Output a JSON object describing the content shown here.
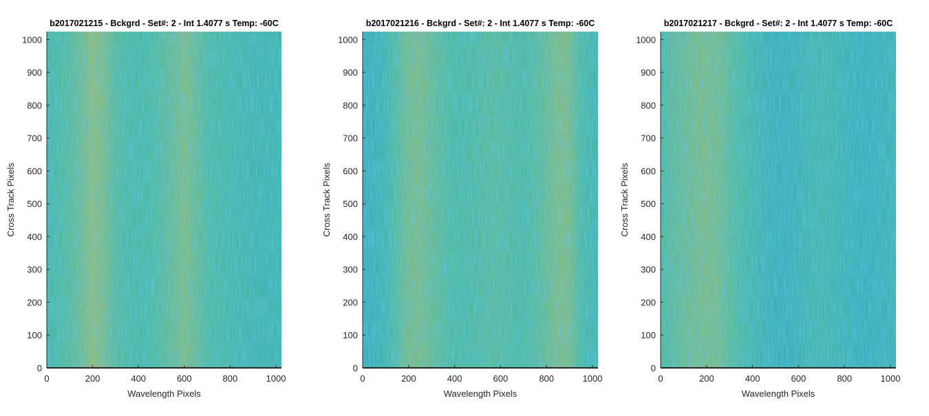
{
  "chart_data": [
    {
      "type": "heatmap",
      "title": "b2017021215 - Bckgrd - Set#: 2 - Int 1.4077 s Temp: -60C",
      "xlabel": "Wavelength Pixels",
      "ylabel": "Cross Track Pixels",
      "xlim": [
        0,
        1024
      ],
      "ylim": [
        0,
        1024
      ],
      "xticks": [
        0,
        200,
        400,
        600,
        800,
        1000
      ],
      "yticks": [
        0,
        100,
        200,
        300,
        400,
        500,
        600,
        700,
        800,
        900,
        1000
      ],
      "colormap": "parula",
      "colors": {
        "low": "#1fa2d8",
        "mid": "#4fb9a0",
        "high": "#c6bf5a"
      },
      "intensity_profile": {
        "columns": [
          0,
          50,
          100,
          150,
          200,
          250,
          300,
          350,
          400,
          450,
          500,
          550,
          600,
          650,
          700,
          750,
          800,
          850,
          900,
          950,
          1024
        ],
        "relative_level": [
          0.45,
          0.5,
          0.55,
          0.65,
          0.78,
          0.7,
          0.55,
          0.5,
          0.48,
          0.5,
          0.55,
          0.62,
          0.72,
          0.62,
          0.52,
          0.48,
          0.45,
          0.42,
          0.4,
          0.38,
          0.4
        ]
      }
    },
    {
      "type": "heatmap",
      "title": "b2017021216 - Bckgrd - Set#: 2 - Int 1.4077 s Temp: -60C",
      "xlabel": "Wavelength Pixels",
      "ylabel": "Cross Track Pixels",
      "xlim": [
        0,
        1024
      ],
      "ylim": [
        0,
        1024
      ],
      "xticks": [
        0,
        200,
        400,
        600,
        800,
        1000
      ],
      "yticks": [
        0,
        100,
        200,
        300,
        400,
        500,
        600,
        700,
        800,
        900,
        1000
      ],
      "colormap": "parula",
      "colors": {
        "low": "#1fa2d8",
        "mid": "#4fb9a0",
        "high": "#c6bf5a"
      },
      "intensity_profile": {
        "columns": [
          0,
          50,
          100,
          150,
          200,
          250,
          300,
          350,
          400,
          450,
          500,
          550,
          600,
          650,
          700,
          750,
          800,
          850,
          900,
          950,
          1024
        ],
        "relative_level": [
          0.3,
          0.32,
          0.4,
          0.55,
          0.68,
          0.7,
          0.62,
          0.55,
          0.5,
          0.5,
          0.52,
          0.55,
          0.55,
          0.52,
          0.5,
          0.55,
          0.62,
          0.72,
          0.7,
          0.5,
          0.4
        ]
      }
    },
    {
      "type": "heatmap",
      "title": "b2017021217 - Bckgrd - Set#: 2 - Int 1.4077 s Temp: -60C",
      "xlabel": "Wavelength Pixels",
      "ylabel": "Cross Track Pixels",
      "xlim": [
        0,
        1024
      ],
      "ylim": [
        0,
        1024
      ],
      "xticks": [
        0,
        200,
        400,
        600,
        800,
        1000
      ],
      "yticks": [
        0,
        100,
        200,
        300,
        400,
        500,
        600,
        700,
        800,
        900,
        1000
      ],
      "colormap": "parula",
      "colors": {
        "low": "#1fa2d8",
        "mid": "#4fb9a0",
        "high": "#c6bf5a"
      },
      "intensity_profile": {
        "columns": [
          0,
          50,
          100,
          150,
          200,
          250,
          300,
          350,
          400,
          450,
          500,
          550,
          600,
          650,
          700,
          750,
          800,
          850,
          900,
          950,
          1024
        ],
        "relative_level": [
          0.5,
          0.58,
          0.62,
          0.68,
          0.7,
          0.68,
          0.58,
          0.5,
          0.42,
          0.35,
          0.3,
          0.3,
          0.35,
          0.4,
          0.42,
          0.4,
          0.35,
          0.3,
          0.28,
          0.32,
          0.35
        ]
      }
    }
  ]
}
